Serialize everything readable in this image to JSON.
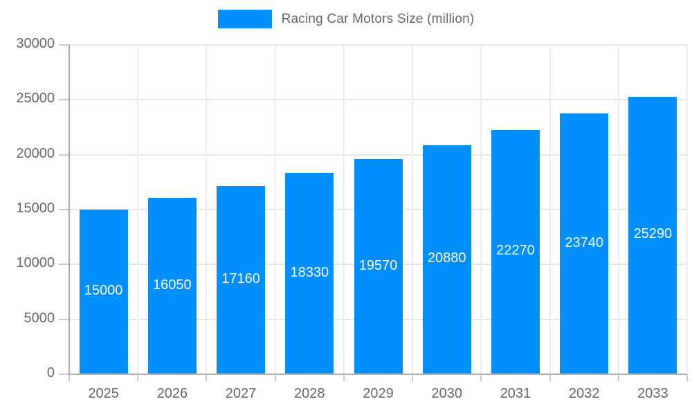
{
  "chart_data": {
    "type": "bar",
    "title": "Racing Car Motors Size (million)",
    "categories": [
      "2025",
      "2026",
      "2027",
      "2028",
      "2029",
      "2030",
      "2031",
      "2032",
      "2033"
    ],
    "series": [
      {
        "name": "Racing Car Motors Size (million)",
        "values": [
          15000,
          16050,
          17160,
          18330,
          19570,
          20880,
          22270,
          23740,
          25290
        ]
      }
    ],
    "data_labels": [
      "15000",
      "16050",
      "17160",
      "18330",
      "19570",
      "20880",
      "22270",
      "23740",
      "25290"
    ],
    "xlabel": "",
    "ylabel": "",
    "ylim": [
      0,
      30000
    ],
    "yticks": [
      0,
      5000,
      10000,
      15000,
      20000,
      25000,
      30000
    ],
    "ytick_labels": [
      "0",
      "5000",
      "10000",
      "15000",
      "20000",
      "25000",
      "30000"
    ],
    "grid": "on",
    "legend_position": "top"
  },
  "legend": {
    "label": "Racing Car Motors Size (million)"
  },
  "colors": {
    "bar": "#008FFB",
    "bar_label": "#ffffff",
    "legend_text": "#666666",
    "axis_text": "#666666",
    "axis_line": "#a8a8a8",
    "gridline_h": "#e7e7e7",
    "gridline_v": "#ededed",
    "tick": "#cccccc",
    "background": "#ffffff"
  }
}
